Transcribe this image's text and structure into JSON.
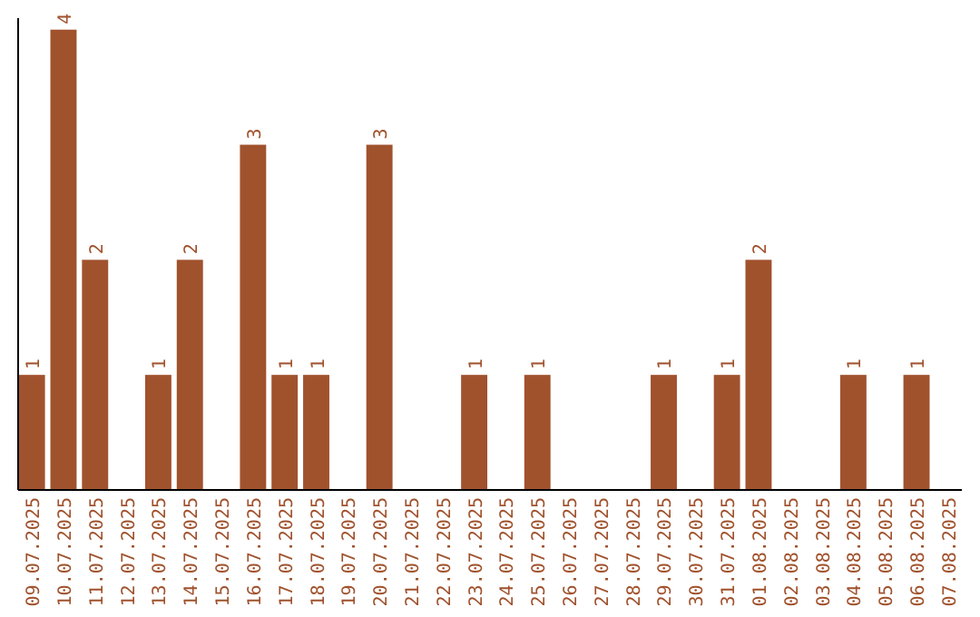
{
  "chart_data": {
    "type": "bar",
    "categories": [
      "09.07.2025",
      "10.07.2025",
      "11.07.2025",
      "12.07.2025",
      "13.07.2025",
      "14.07.2025",
      "15.07.2025",
      "16.07.2025",
      "17.07.2025",
      "18.07.2025",
      "19.07.2025",
      "20.07.2025",
      "21.07.2025",
      "22.07.2025",
      "23.07.2025",
      "24.07.2025",
      "25.07.2025",
      "26.07.2025",
      "27.07.2025",
      "28.07.2025",
      "29.07.2025",
      "30.07.2025",
      "31.07.2025",
      "01.08.2025",
      "02.08.2025",
      "03.08.2025",
      "04.08.2025",
      "05.08.2025",
      "06.08.2025",
      "07.08.2025"
    ],
    "values": [
      1,
      4,
      2,
      0,
      1,
      2,
      0,
      3,
      1,
      1,
      0,
      3,
      0,
      0,
      1,
      0,
      1,
      0,
      0,
      0,
      1,
      0,
      1,
      2,
      0,
      0,
      1,
      0,
      1,
      0
    ],
    "value_labels": [
      "1",
      "4",
      "2",
      null,
      "1",
      "2",
      null,
      "3",
      "1",
      "1",
      null,
      "3",
      null,
      null,
      "1",
      null,
      "1",
      null,
      null,
      null,
      "1",
      null,
      "1",
      "2",
      null,
      null,
      "1",
      null,
      "1",
      null
    ],
    "color": "#a0522d",
    "ylim": [
      0,
      4.1
    ],
    "tick_labels": "x"
  }
}
